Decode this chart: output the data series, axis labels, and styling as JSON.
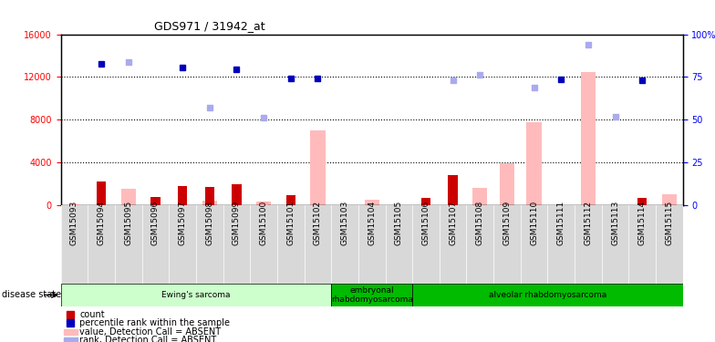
{
  "title": "GDS971 / 31942_at",
  "samples": [
    "GSM15093",
    "GSM15094",
    "GSM15095",
    "GSM15096",
    "GSM15097",
    "GSM15098",
    "GSM15099",
    "GSM15100",
    "GSM15101",
    "GSM15102",
    "GSM15103",
    "GSM15104",
    "GSM15105",
    "GSM15106",
    "GSM15107",
    "GSM15108",
    "GSM15109",
    "GSM15110",
    "GSM15111",
    "GSM15112",
    "GSM15113",
    "GSM15114",
    "GSM15115"
  ],
  "count_red": [
    0,
    2200,
    0,
    800,
    1800,
    1700,
    2000,
    0,
    900,
    0,
    0,
    0,
    0,
    700,
    2800,
    0,
    0,
    0,
    0,
    0,
    0,
    700,
    0
  ],
  "count_pink": [
    100,
    0,
    0,
    0,
    0,
    0,
    0,
    300,
    0,
    0,
    0,
    0,
    0,
    0,
    0,
    0,
    0,
    0,
    0,
    0,
    0,
    0,
    0
  ],
  "value_pink": [
    0,
    0,
    1500,
    0,
    0,
    400,
    0,
    300,
    0,
    7000,
    0,
    500,
    0,
    0,
    0,
    1600,
    3900,
    7800,
    0,
    12500,
    0,
    0,
    1000
  ],
  "rank_blue_dark": [
    0,
    13200,
    0,
    0,
    12900,
    0,
    12700,
    0,
    11900,
    11900,
    0,
    0,
    0,
    0,
    0,
    0,
    0,
    0,
    11800,
    0,
    0,
    11700,
    0
  ],
  "rank_blue_light": [
    0,
    0,
    13400,
    0,
    0,
    9100,
    0,
    8200,
    0,
    0,
    0,
    0,
    0,
    0,
    11700,
    12200,
    0,
    11000,
    0,
    15000,
    8300,
    0,
    0
  ],
  "disease_groups": [
    {
      "label": "Ewing's sarcoma",
      "start": 0,
      "end": 10,
      "color": "#ccffcc"
    },
    {
      "label": "embryonal\nrhabdomyosarcoma",
      "start": 10,
      "end": 13,
      "color": "#00bb00"
    },
    {
      "label": "alveolar rhabdomyosarcoma",
      "start": 13,
      "end": 23,
      "color": "#00bb00"
    }
  ],
  "ylim_left": [
    0,
    16000
  ],
  "ylim_right": [
    0,
    100
  ],
  "yticks_left": [
    0,
    4000,
    8000,
    12000,
    16000
  ],
  "yticks_right": [
    0,
    25,
    50,
    75,
    100
  ],
  "ytick_labels_right": [
    "0",
    "25",
    "50",
    "75",
    "100%"
  ],
  "color_count_red": "#cc0000",
  "color_count_pink": "#ffaaaa",
  "color_value_pink": "#ffbbbb",
  "color_rank_dark": "#0000bb",
  "color_rank_light": "#aaaaee"
}
